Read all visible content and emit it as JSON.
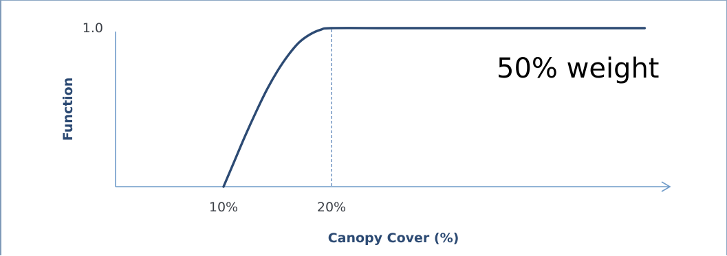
{
  "chart_data": {
    "type": "line",
    "title": "",
    "xlabel": "Canopy Cover (%)",
    "ylabel": "Function",
    "x_ticks": [
      {
        "value": 10,
        "label": "10%"
      },
      {
        "value": 20,
        "label": "20%"
      }
    ],
    "y_ticks": [
      {
        "value": 1.0,
        "label": "1.0"
      }
    ],
    "xlim": [
      0,
      51
    ],
    "ylim": [
      0,
      1.0
    ],
    "grid": false,
    "legend": "none",
    "series": [
      {
        "x": [
          10,
          11,
          12,
          13,
          14,
          15,
          16,
          17,
          18,
          19,
          20,
          25,
          30,
          35,
          40,
          45,
          49
        ],
        "y": [
          0.0,
          0.16,
          0.32,
          0.47,
          0.61,
          0.73,
          0.83,
          0.91,
          0.96,
          0.99,
          1.0,
          1.0,
          1.0,
          1.0,
          1.0,
          1.0,
          1.0
        ]
      }
    ],
    "reference_lines": [
      {
        "orientation": "vertical",
        "x": 20,
        "style": "dashed"
      }
    ],
    "annotations": [
      {
        "text": "50% weight"
      }
    ],
    "colors": {
      "line": "#2c4a73",
      "axis": "#6f9bc9",
      "reference": "#5b84b8"
    }
  }
}
